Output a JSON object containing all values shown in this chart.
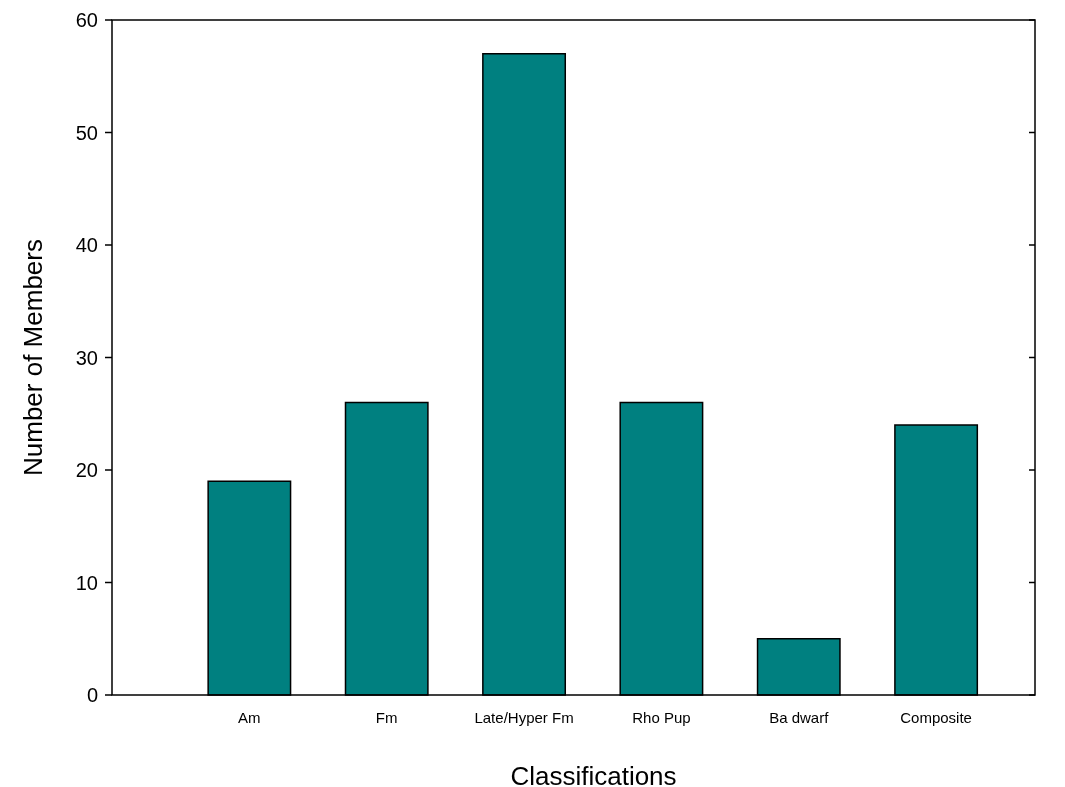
{
  "chart_data": {
    "type": "bar",
    "xlabel": "Classifications",
    "ylabel": "Number of Members",
    "categories": [
      "Am",
      "Fm",
      "Late/Hyper Fm",
      "Rho Pup",
      "Ba dwarf",
      "Composite"
    ],
    "values": [
      19,
      26,
      57,
      26,
      5,
      24
    ],
    "color": "#008080",
    "ylim": [
      0,
      60
    ],
    "yticks": [
      0,
      10,
      20,
      30,
      40,
      50,
      60
    ]
  }
}
